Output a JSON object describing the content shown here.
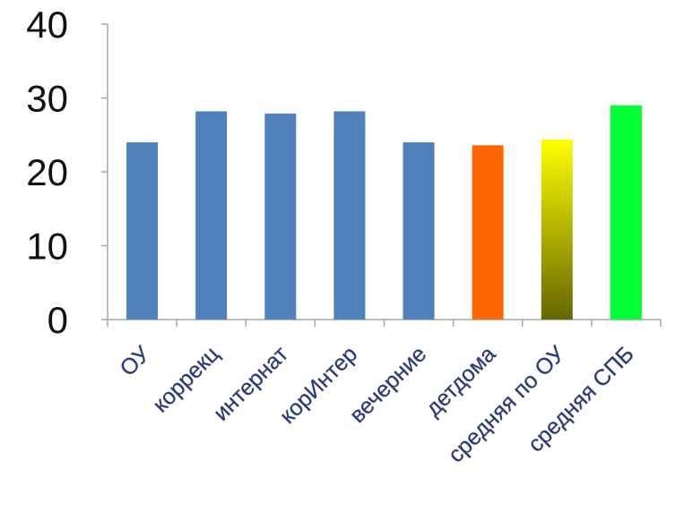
{
  "chart_data": {
    "type": "bar",
    "title": "",
    "xlabel": "",
    "ylabel": "",
    "ylim": [
      0,
      40
    ],
    "yticks": [
      0,
      10,
      20,
      30,
      40
    ],
    "grid": false,
    "legend": "none",
    "categories": [
      "ОУ",
      "коррекц",
      "интернат",
      "корИнтер",
      "вечерние",
      "детдома",
      "средняя по ОУ",
      "средняя СПБ"
    ],
    "values": [
      24,
      28.2,
      27.9,
      28.2,
      24,
      23.6,
      24.4,
      29
    ],
    "fills": [
      "blue",
      "blue",
      "blue",
      "blue",
      "blue",
      "orange",
      "gradient-yellow-olive",
      "green"
    ]
  },
  "colors": {
    "blue": "#4f81bd",
    "orange": "#ff6600",
    "green": "#00ff33",
    "gradient_top": "#ffff00",
    "gradient_bottom": "#666600",
    "axis": "#a6a6a6",
    "tick_text": "#111111",
    "category_text": "#1f3a93"
  }
}
